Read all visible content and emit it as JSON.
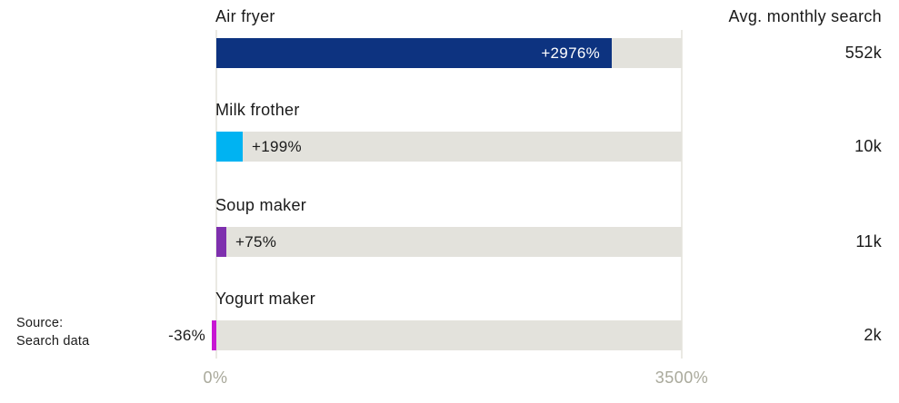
{
  "chart_data": {
    "type": "bar",
    "orientation": "horizontal",
    "x_axis": {
      "min": 0,
      "max": 3500,
      "min_label": "0%",
      "max_label": "3500%",
      "grid": true
    },
    "right_column_header": "Avg. monthly search",
    "rows": [
      {
        "label": "Air fryer",
        "change_pct": 2976,
        "change_label": "+2976%",
        "avg_monthly_search": "552k",
        "color": "#0d3380",
        "value_label_inside": true
      },
      {
        "label": "Milk frother",
        "change_pct": 199,
        "change_label": "+199%",
        "avg_monthly_search": "10k",
        "color": "#00b3f2",
        "value_label_inside": false
      },
      {
        "label": "Soup maker",
        "change_pct": 75,
        "change_label": "+75%",
        "avg_monthly_search": "11k",
        "color": "#7e30ae",
        "value_label_inside": false
      },
      {
        "label": "Yogurt maker",
        "change_pct": -36,
        "change_label": "-36%",
        "avg_monthly_search": "2k",
        "color": "#c716d3",
        "value_label_inside": false
      }
    ],
    "source": {
      "line1": "Source:",
      "line2": "Search data"
    },
    "colors": {
      "track": "#e3e2dc",
      "gridline": "#eae9e3",
      "text": "#1a1a1a",
      "axis_text": "#a9a99b",
      "bar_value_inside_text": "#ffffff"
    }
  }
}
